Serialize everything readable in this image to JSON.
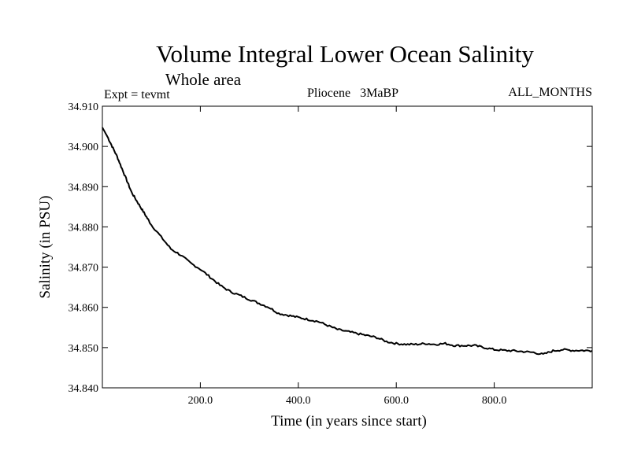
{
  "chart_data": {
    "type": "line",
    "title": "Volume Integral Lower Ocean Salinity",
    "subtitle": "Whole area",
    "annotations": {
      "left": "Expt = tevmt",
      "center": "Pliocene   3MaBP",
      "right": "ALL_MONTHS"
    },
    "xlabel": "Time (in years since start)",
    "ylabel": "Salinity (in PSU)",
    "xlim": [
      0,
      1000
    ],
    "ylim": [
      34.84,
      34.91
    ],
    "xticks": [
      {
        "value": 200,
        "label": "200.0"
      },
      {
        "value": 400,
        "label": "400.0"
      },
      {
        "value": 600,
        "label": "600.0"
      },
      {
        "value": 800,
        "label": "800.0"
      }
    ],
    "yticks": [
      {
        "value": 34.84,
        "label": "34.840"
      },
      {
        "value": 34.85,
        "label": "34.850"
      },
      {
        "value": 34.86,
        "label": "34.860"
      },
      {
        "value": 34.87,
        "label": "34.870"
      },
      {
        "value": 34.88,
        "label": "34.880"
      },
      {
        "value": 34.89,
        "label": "34.890"
      },
      {
        "value": 34.9,
        "label": "34.900"
      },
      {
        "value": 34.91,
        "label": "34.910"
      }
    ],
    "grid": false,
    "series": [
      {
        "name": "salinity",
        "x": [
          0,
          10,
          20,
          30,
          40,
          50,
          60,
          70,
          80,
          90,
          100,
          120,
          140,
          160,
          180,
          200,
          220,
          240,
          260,
          280,
          300,
          320,
          340,
          360,
          380,
          400,
          420,
          440,
          460,
          480,
          500,
          520,
          540,
          560,
          580,
          600,
          620,
          640,
          660,
          680,
          700,
          720,
          740,
          760,
          780,
          800,
          820,
          840,
          860,
          880,
          900,
          920,
          940,
          960,
          980,
          1000
        ],
        "values": [
          34.9047,
          34.9025,
          34.9,
          34.8975,
          34.8945,
          34.8915,
          34.8885,
          34.8865,
          34.8845,
          34.8825,
          34.8805,
          34.8775,
          34.8745,
          34.873,
          34.871,
          34.8695,
          34.8675,
          34.8655,
          34.864,
          34.863,
          34.862,
          34.861,
          34.86,
          34.8585,
          34.858,
          34.8575,
          34.857,
          34.8565,
          34.8555,
          34.8545,
          34.854,
          34.8535,
          34.853,
          34.8525,
          34.8515,
          34.851,
          34.8508,
          34.8508,
          34.851,
          34.8508,
          34.851,
          34.8505,
          34.8505,
          34.8505,
          34.85,
          34.8495,
          34.8493,
          34.8492,
          34.849,
          34.8488,
          34.8483,
          34.8492,
          34.8495,
          34.8493,
          34.8493,
          34.8492
        ]
      }
    ]
  }
}
